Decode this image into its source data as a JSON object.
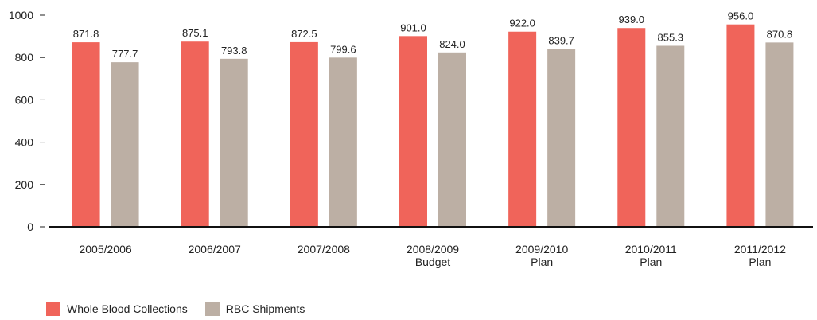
{
  "chart_data": {
    "type": "bar",
    "categories": [
      [
        "2005/2006"
      ],
      [
        "2006/2007"
      ],
      [
        "2007/2008"
      ],
      [
        "2008/2009",
        "Budget"
      ],
      [
        "2009/2010",
        "Plan"
      ],
      [
        "2010/2011",
        "Plan"
      ],
      [
        "2011/2012",
        "Plan"
      ]
    ],
    "series": [
      {
        "name": "Whole Blood Collections",
        "color": "#f0645a",
        "values": [
          871.8,
          875.1,
          872.5,
          901.0,
          922.0,
          939.0,
          956.0
        ],
        "labels": [
          "871.8",
          "875.1",
          "872.5",
          "901.0",
          "922.0",
          "939.0",
          "956.0"
        ]
      },
      {
        "name": "RBC Shipments",
        "color": "#bcafa4",
        "values": [
          777.7,
          793.8,
          799.6,
          824.0,
          839.7,
          855.3,
          870.8
        ],
        "labels": [
          "777.7",
          "793.8",
          "799.6",
          "824.0",
          "839.7",
          "855.3",
          "870.8"
        ]
      }
    ],
    "y_ticks": [
      "0",
      "200",
      "400",
      "600",
      "800",
      "1000"
    ],
    "ylim": [
      0,
      1000
    ],
    "grid": false,
    "legend_position": "bottom-left"
  }
}
